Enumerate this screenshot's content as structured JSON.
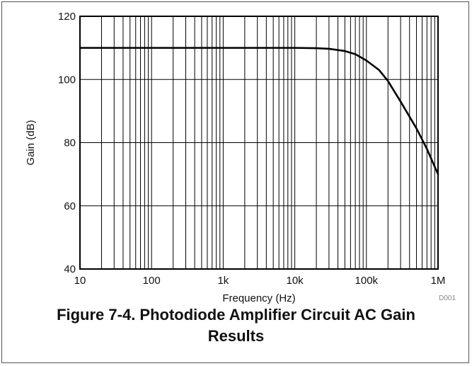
{
  "figure": {
    "caption_line1": "Figure 7-4. Photodiode Amplifier Circuit AC Gain",
    "caption_line2": "Results"
  },
  "chart_data": {
    "type": "line",
    "x_scale": "log",
    "xlabel": "Frequency (Hz)",
    "ylabel": "Gain (dB)",
    "xlim": [
      10,
      1000000
    ],
    "ylim": [
      40,
      120
    ],
    "x_ticks": [
      {
        "value": 10,
        "label": "10"
      },
      {
        "value": 100,
        "label": "100"
      },
      {
        "value": 1000,
        "label": "1k"
      },
      {
        "value": 10000,
        "label": "10k"
      },
      {
        "value": 100000,
        "label": "100k"
      },
      {
        "value": 1000000,
        "label": "1M"
      }
    ],
    "y_ticks": [
      {
        "value": 40,
        "label": "40"
      },
      {
        "value": 60,
        "label": "60"
      },
      {
        "value": 80,
        "label": "80"
      },
      {
        "value": 100,
        "label": "100"
      },
      {
        "value": 120,
        "label": "120"
      }
    ],
    "grid": true,
    "line_color": "#000000",
    "series": [
      {
        "x": [
          10,
          100,
          1000,
          10000,
          20000,
          30000,
          50000,
          70000,
          100000,
          150000,
          200000,
          300000,
          500000,
          700000,
          1000000
        ],
        "y": [
          110,
          110,
          110,
          110,
          109.9,
          109.7,
          109.0,
          108.0,
          106.0,
          103.0,
          99.5,
          93.0,
          84.5,
          78.0,
          70.0
        ]
      }
    ],
    "code": "D001"
  }
}
